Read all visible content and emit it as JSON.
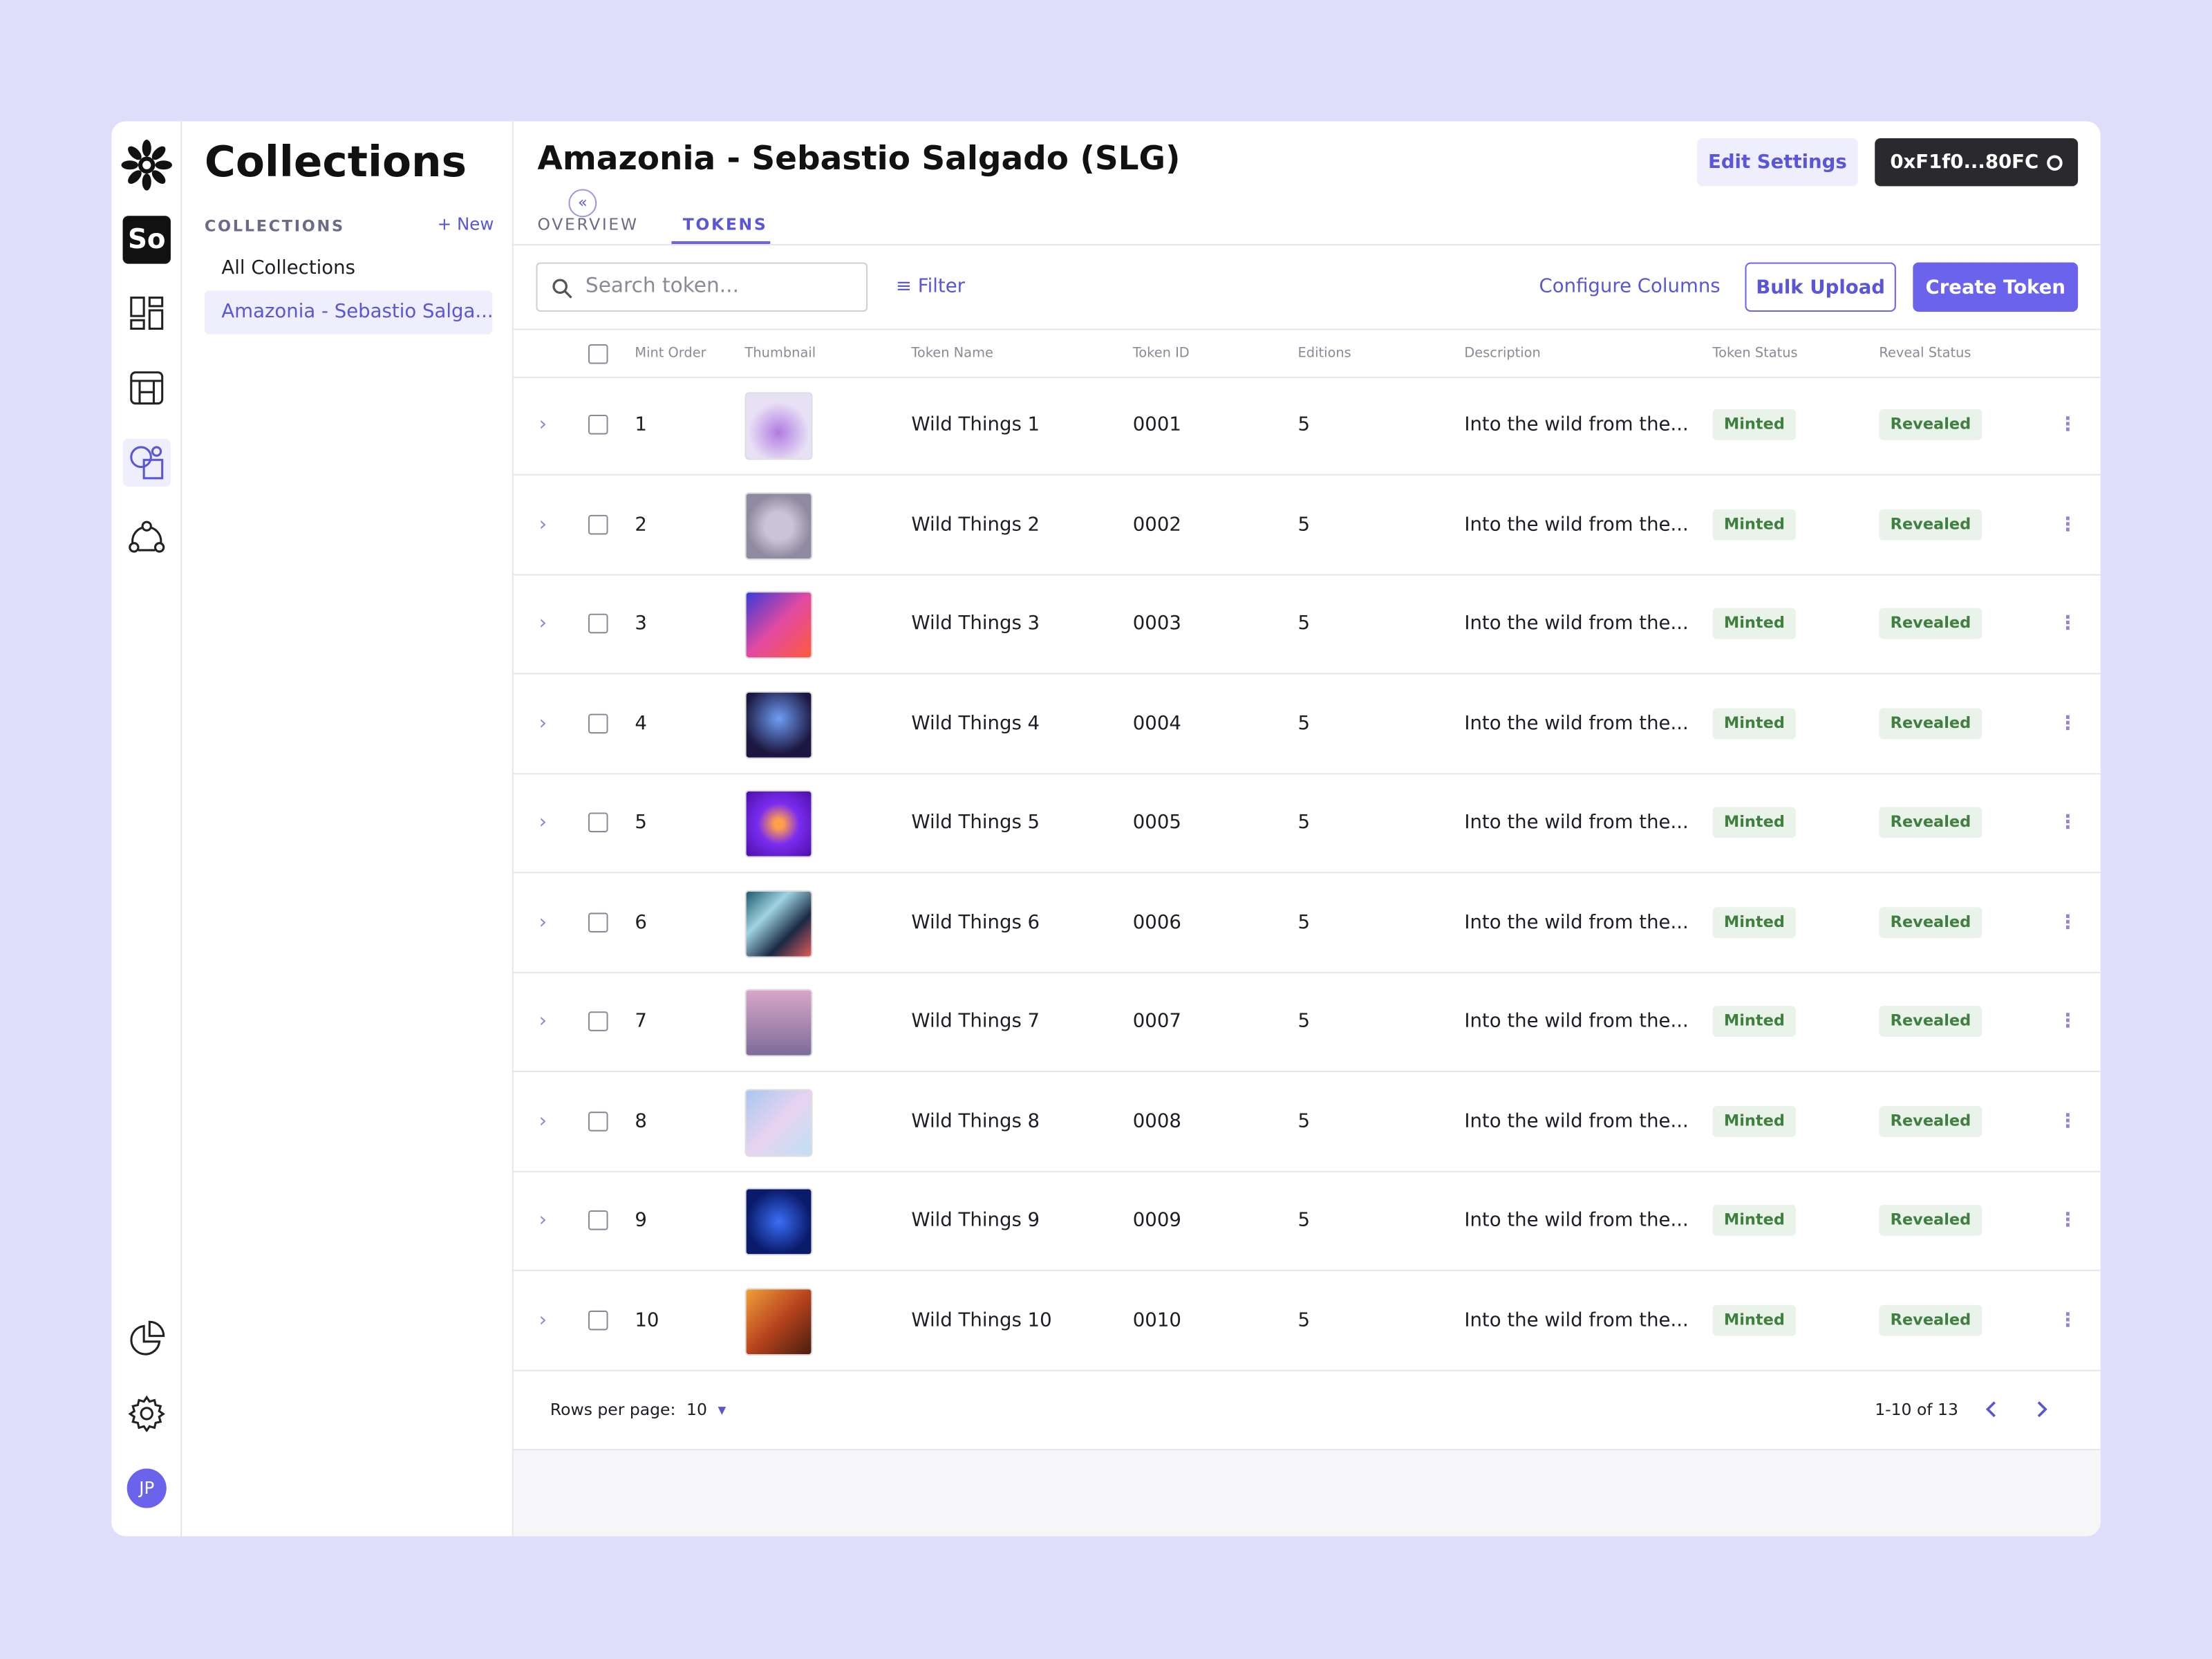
{
  "sidebar": {
    "workspace": "So",
    "avatar": "JP"
  },
  "collections_panel": {
    "title": "Collections",
    "section_label": "COLLECTIONS",
    "new_button": "New",
    "items": [
      "All Collections",
      "Amazonia - Sebastio Salga..."
    ]
  },
  "header": {
    "title": "Amazonia - Sebastio Salgado (SLG)",
    "edit_button": "Edit Settings",
    "wallet_button": "0xF1f0...80FC"
  },
  "tabs": [
    "OVERVIEW",
    "TOKENS"
  ],
  "toolbar": {
    "search_placeholder": "Search token...",
    "filter": "Filter",
    "configure_columns": "Configure Columns",
    "bulk_upload": "Bulk Upload",
    "create_token": "Create Token"
  },
  "table": {
    "columns": [
      "Mint Order",
      "Thumbnail",
      "Token Name",
      "Token ID",
      "Editions",
      "Description",
      "Token Status",
      "Reveal Status"
    ],
    "rows": [
      [
        "1",
        "Wild Things 1",
        "0001",
        "5",
        "Into the wild from the...",
        "Minted",
        "Revealed"
      ],
      [
        "2",
        "Wild Things 2",
        "0002",
        "5",
        "Into the wild from the...",
        "Minted",
        "Revealed"
      ],
      [
        "3",
        "Wild Things 3",
        "0003",
        "5",
        "Into the wild from the...",
        "Minted",
        "Revealed"
      ],
      [
        "4",
        "Wild Things 4",
        "0004",
        "5",
        "Into the wild from the...",
        "Minted",
        "Revealed"
      ],
      [
        "5",
        "Wild Things 5",
        "0005",
        "5",
        "Into the wild from the...",
        "Minted",
        "Revealed"
      ],
      [
        "6",
        "Wild Things 6",
        "0006",
        "5",
        "Into the wild from the...",
        "Minted",
        "Revealed"
      ],
      [
        "7",
        "Wild Things 7",
        "0007",
        "5",
        "Into the wild from the...",
        "Minted",
        "Revealed"
      ],
      [
        "8",
        "Wild Things 8",
        "0008",
        "5",
        "Into the wild from the...",
        "Minted",
        "Revealed"
      ],
      [
        "9",
        "Wild Things 9",
        "0009",
        "5",
        "Into the wild from the...",
        "Minted",
        "Revealed"
      ],
      [
        "10",
        "Wild Things 10",
        "0010",
        "5",
        "Into the wild from the...",
        "Minted",
        "Revealed"
      ]
    ]
  },
  "pagination": {
    "rows_per_page_label": "Rows per page:",
    "rows_per_page": "10",
    "range": "1-10 of 13"
  }
}
